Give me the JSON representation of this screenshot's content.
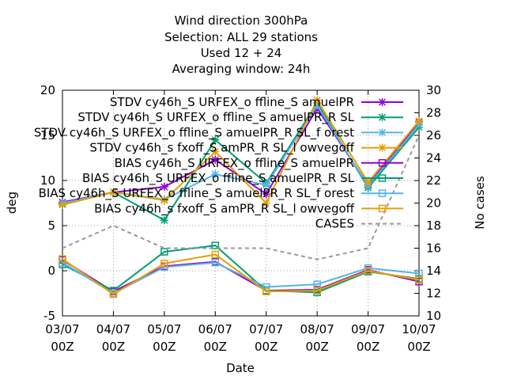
{
  "chart_data": {
    "type": "line",
    "title_lines": [
      "Wind direction 300hPa",
      "Selection: ALL     29 stations",
      "Used  12 + 24",
      "Averaging window: 24h"
    ],
    "xlabel": "Date",
    "ylabel": "deg",
    "y2label": "No cases",
    "x_ticks": [
      "03/07\n00Z",
      "04/07\n00Z",
      "05/07\n00Z",
      "06/07\n00Z",
      "07/07\n00Z",
      "08/07\n00Z",
      "09/07\n00Z",
      "10/07\n00Z"
    ],
    "ylim": [
      -5,
      20
    ],
    "yticks": [
      "-5",
      "0",
      "5",
      "10",
      "15",
      "20"
    ],
    "y2lim": [
      10,
      30
    ],
    "y2ticks": [
      "10",
      "12",
      "14",
      "16",
      "18",
      "20",
      "22",
      "24",
      "26",
      "28",
      "30"
    ],
    "grid": true,
    "legend_position": "top-right",
    "series": [
      {
        "name": "STDV cy46h_S URFEX_o ffline_S amuelPR",
        "color": "#9400d3",
        "marker": "x",
        "axis": "y1",
        "dash": false,
        "values": [
          7.6,
          8.7,
          9.3,
          12.3,
          8.5,
          18.0,
          9.5,
          16.5
        ]
      },
      {
        "name": "STDV cy46h_S URFEX_o ffline_S amuelPR_R SL",
        "color": "#009e73",
        "marker": "x",
        "axis": "y1",
        "dash": false,
        "values": [
          7.4,
          8.7,
          5.6,
          14.5,
          9.7,
          18.6,
          9.2,
          15.9
        ]
      },
      {
        "name": "STDV cy46h_S URFEX_o ffline_S amuelPR_R SL_f orest",
        "color": "#56b4e9",
        "marker": "x",
        "axis": "y1",
        "dash": false,
        "values": [
          7.5,
          8.7,
          7.9,
          10.7,
          9.5,
          18.3,
          9.4,
          16.2
        ]
      },
      {
        "name": "STDV cy46h_s fxoff_S amPR_R SL_l owvegoff",
        "color": "#e69f00",
        "marker": "x",
        "axis": "y1",
        "dash": false,
        "values": [
          7.3,
          8.7,
          7.8,
          13.2,
          7.5,
          18.9,
          9.8,
          16.6
        ]
      },
      {
        "name": "BIAS cy46h_S URFEX_o ffline_S amuelPR",
        "color": "#9400d3",
        "marker": "square",
        "axis": "y1",
        "dash": false,
        "values": [
          1.2,
          -2.3,
          0.5,
          1.0,
          -2.2,
          -2.1,
          0.1,
          -1.2
        ]
      },
      {
        "name": "BIAS cy46h_S URFEX_o ffline_S amuelPR_R SL",
        "color": "#009e73",
        "marker": "square",
        "axis": "y1",
        "dash": false,
        "values": [
          0.7,
          -2.2,
          2.1,
          2.8,
          -2.2,
          -2.4,
          -0.1,
          -0.9
        ]
      },
      {
        "name": "BIAS cy46h_S URFEX_o ffline_S amuelPR_R SL_f orest",
        "color": "#56b4e9",
        "marker": "square",
        "axis": "y1",
        "dash": false,
        "values": [
          0.9,
          -2.5,
          0.4,
          0.9,
          -1.8,
          -1.5,
          0.3,
          -0.3
        ]
      },
      {
        "name": "BIAS cy46h_s fxoff_S amPR_R SL_l owvegoff",
        "color": "#e69f00",
        "marker": "square",
        "axis": "y1",
        "dash": false,
        "values": [
          1.3,
          -2.6,
          0.8,
          1.8,
          -2.3,
          -2.2,
          0.0,
          -1.0
        ]
      },
      {
        "name": "CASES",
        "color": "#999999",
        "marker": "none",
        "axis": "y2",
        "dash": true,
        "values": [
          16,
          18,
          16,
          16,
          16,
          15,
          16,
          26
        ]
      }
    ]
  }
}
